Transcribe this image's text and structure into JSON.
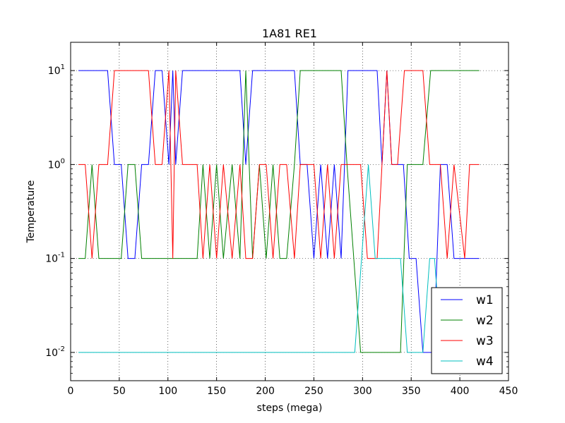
{
  "chart_data": {
    "type": "line",
    "title": "1A81 RE1",
    "xlabel": "steps (mega)",
    "ylabel": "Temperature",
    "xlim": [
      0,
      450
    ],
    "ylim": [
      0.005,
      20
    ],
    "yscale": "log",
    "grid": true,
    "legend_position": "lower-right",
    "x_ticks": [
      0,
      50,
      100,
      150,
      200,
      250,
      300,
      350,
      400,
      450
    ],
    "y_ticks": [
      {
        "value": 0.01,
        "base": "10",
        "exp": "-2"
      },
      {
        "value": 0.1,
        "base": "10",
        "exp": "-1"
      },
      {
        "value": 1,
        "base": "10",
        "exp": "0"
      },
      {
        "value": 10,
        "base": "10",
        "exp": "1"
      }
    ],
    "series": [
      {
        "name": "w1",
        "color": "#0000ff",
        "points": [
          [
            8,
            10
          ],
          [
            38,
            10
          ],
          [
            45,
            1
          ],
          [
            52,
            1
          ],
          [
            59,
            0.1
          ],
          [
            66,
            0.1
          ],
          [
            73,
            1
          ],
          [
            80,
            1
          ],
          [
            87,
            10
          ],
          [
            94,
            10
          ],
          [
            101,
            1
          ],
          [
            105,
            10
          ],
          [
            108,
            1
          ],
          [
            115,
            10
          ],
          [
            174,
            10
          ],
          [
            180,
            1
          ],
          [
            187,
            10
          ],
          [
            230,
            10
          ],
          [
            236,
            1
          ],
          [
            243,
            1
          ],
          [
            250,
            0.1
          ],
          [
            257,
            1
          ],
          [
            264,
            0.1
          ],
          [
            271,
            1
          ],
          [
            278,
            0.1
          ],
          [
            285,
            10
          ],
          [
            315,
            10
          ],
          [
            320,
            1
          ],
          [
            325,
            10
          ],
          [
            330,
            1
          ],
          [
            336,
            1
          ],
          [
            342,
            1
          ],
          [
            348,
            0.1
          ],
          [
            355,
            0.1
          ],
          [
            362,
            0.01
          ],
          [
            373,
            0.01
          ],
          [
            380,
            1
          ],
          [
            387,
            1
          ],
          [
            394,
            0.1
          ],
          [
            420,
            0.1
          ]
        ]
      },
      {
        "name": "w2",
        "color": "#008000",
        "points": [
          [
            8,
            0.1
          ],
          [
            15,
            0.1
          ],
          [
            22,
            1
          ],
          [
            29,
            0.1
          ],
          [
            52,
            0.1
          ],
          [
            59,
            1
          ],
          [
            66,
            1
          ],
          [
            73,
            0.1
          ],
          [
            130,
            0.1
          ],
          [
            136,
            1
          ],
          [
            143,
            0.1
          ],
          [
            150,
            1
          ],
          [
            157,
            0.1
          ],
          [
            166,
            1
          ],
          [
            174,
            0.1
          ],
          [
            180,
            10
          ],
          [
            187,
            0.1
          ],
          [
            194,
            1
          ],
          [
            201,
            0.1
          ],
          [
            208,
            1
          ],
          [
            215,
            0.1
          ],
          [
            222,
            0.1
          ],
          [
            230,
            1
          ],
          [
            236,
            10
          ],
          [
            278,
            10
          ],
          [
            284,
            1
          ],
          [
            291,
            0.1
          ],
          [
            298,
            0.01
          ],
          [
            339,
            0.01
          ],
          [
            346,
            1
          ],
          [
            362,
            1
          ],
          [
            370,
            10
          ],
          [
            420,
            10
          ]
        ]
      },
      {
        "name": "w3",
        "color": "#ff0000",
        "points": [
          [
            8,
            1
          ],
          [
            15,
            1
          ],
          [
            22,
            0.1
          ],
          [
            29,
            1
          ],
          [
            38,
            1
          ],
          [
            45,
            10
          ],
          [
            80,
            10
          ],
          [
            87,
            1
          ],
          [
            94,
            1
          ],
          [
            101,
            10
          ],
          [
            105,
            0.1
          ],
          [
            108,
            10
          ],
          [
            115,
            1
          ],
          [
            130,
            1
          ],
          [
            136,
            0.1
          ],
          [
            143,
            1
          ],
          [
            150,
            0.1
          ],
          [
            157,
            1
          ],
          [
            166,
            0.1
          ],
          [
            174,
            1
          ],
          [
            180,
            0.1
          ],
          [
            187,
            0.1
          ],
          [
            194,
            1
          ],
          [
            201,
            1
          ],
          [
            208,
            0.1
          ],
          [
            215,
            1
          ],
          [
            222,
            1
          ],
          [
            230,
            0.1
          ],
          [
            236,
            1
          ],
          [
            243,
            1
          ],
          [
            250,
            1
          ],
          [
            257,
            0.1
          ],
          [
            264,
            1
          ],
          [
            271,
            0.1
          ],
          [
            278,
            1
          ],
          [
            285,
            1
          ],
          [
            291,
            1
          ],
          [
            298,
            1
          ],
          [
            305,
            0.1
          ],
          [
            315,
            0.1
          ],
          [
            320,
            1
          ],
          [
            325,
            10
          ],
          [
            330,
            1
          ],
          [
            336,
            1
          ],
          [
            343,
            10
          ],
          [
            362,
            10
          ],
          [
            369,
            1
          ],
          [
            380,
            1
          ],
          [
            387,
            0.1
          ],
          [
            394,
            1
          ],
          [
            405,
            0.1
          ],
          [
            410,
            1
          ],
          [
            420,
            1
          ]
        ]
      },
      {
        "name": "w4",
        "color": "#00bfbf",
        "points": [
          [
            8,
            0.01
          ],
          [
            292,
            0.01
          ],
          [
            299,
            0.1
          ],
          [
            306,
            1
          ],
          [
            313,
            0.1
          ],
          [
            339,
            0.1
          ],
          [
            346,
            0.01
          ],
          [
            362,
            0.01
          ],
          [
            369,
            0.1
          ],
          [
            374,
            0.1
          ],
          [
            381,
            0.01
          ]
        ]
      }
    ]
  }
}
